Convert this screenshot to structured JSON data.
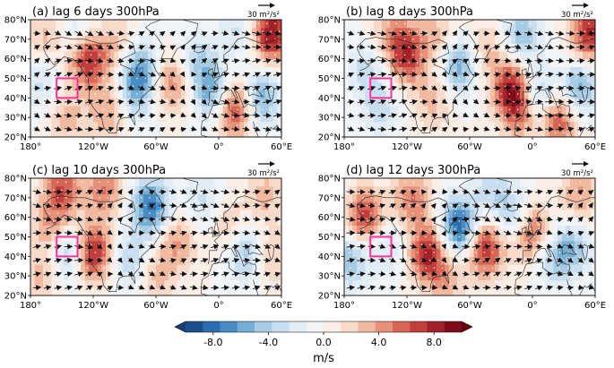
{
  "chart_data": [
    {
      "type": "heatmap",
      "title": "(a) lag 6 days  300hPa",
      "ref_arrow_label": "30 m²/s²",
      "xlabel": "",
      "ylabel": "",
      "xlim": [
        -180,
        60
      ],
      "ylim": [
        20,
        80
      ],
      "x_ticks": [
        -180,
        -120,
        -60,
        0,
        60
      ],
      "x_tick_labels": [
        "180°",
        "120°W",
        "60°W",
        "0°",
        "60°E"
      ],
      "y_ticks": [
        20,
        30,
        40,
        50,
        60,
        70,
        80
      ],
      "y_tick_labels": [
        "20°N",
        "30°N",
        "40°N",
        "50°N",
        "60°N",
        "70°N",
        "80°N"
      ],
      "box": {
        "lon": [
          -155,
          -135
        ],
        "lat": [
          40,
          50
        ]
      },
      "anomalies": [
        {
          "lon": -125,
          "lat": 60,
          "value": 8
        },
        {
          "lon": -135,
          "lat": 73,
          "value": -3
        },
        {
          "lon": -95,
          "lat": 67,
          "value": 3
        },
        {
          "lon": -75,
          "lat": 55,
          "value": -6
        },
        {
          "lon": -80,
          "lat": 42,
          "value": -4
        },
        {
          "lon": -105,
          "lat": 33,
          "value": 4
        },
        {
          "lon": -145,
          "lat": 30,
          "value": 3
        },
        {
          "lon": -45,
          "lat": 48,
          "value": 5
        },
        {
          "lon": -20,
          "lat": 58,
          "value": -4
        },
        {
          "lon": -5,
          "lat": 42,
          "value": -6
        },
        {
          "lon": 15,
          "lat": 35,
          "value": 8
        },
        {
          "lon": 40,
          "lat": 40,
          "value": -6
        },
        {
          "lon": 50,
          "lat": 73,
          "value": 9
        },
        {
          "lon": 20,
          "lat": 75,
          "value": -3
        },
        {
          "lon": -170,
          "lat": 48,
          "value": -3
        },
        {
          "lon": -165,
          "lat": 70,
          "value": 3
        }
      ]
    },
    {
      "type": "heatmap",
      "title": "(b) lag 8 days  300hPa",
      "ref_arrow_label": "30 m²/s²",
      "xlabel": "",
      "ylabel": "",
      "xlim": [
        -180,
        60
      ],
      "ylim": [
        20,
        80
      ],
      "x_ticks": [
        -180,
        -120,
        -60,
        0,
        60
      ],
      "x_tick_labels": [
        "180°",
        "120°W",
        "60°W",
        "0°",
        "60°E"
      ],
      "y_ticks": [
        20,
        30,
        40,
        50,
        60,
        70,
        80
      ],
      "y_tick_labels": [
        "20°N",
        "30°N",
        "40°N",
        "50°N",
        "60°N",
        "70°N",
        "80°N"
      ],
      "box": {
        "lon": [
          -155,
          -135
        ],
        "lat": [
          40,
          50
        ]
      },
      "anomalies": [
        {
          "lon": -120,
          "lat": 62,
          "value": 7
        },
        {
          "lon": -90,
          "lat": 72,
          "value": 3
        },
        {
          "lon": -70,
          "lat": 57,
          "value": -6
        },
        {
          "lon": -95,
          "lat": 38,
          "value": 3
        },
        {
          "lon": -145,
          "lat": 35,
          "value": -3
        },
        {
          "lon": -160,
          "lat": 55,
          "value": -3
        },
        {
          "lon": -20,
          "lat": 45,
          "value": 8
        },
        {
          "lon": -10,
          "lat": 33,
          "value": 5
        },
        {
          "lon": 5,
          "lat": 40,
          "value": -6
        },
        {
          "lon": 25,
          "lat": 30,
          "value": 7
        },
        {
          "lon": 45,
          "lat": 45,
          "value": -6
        },
        {
          "lon": 55,
          "lat": 73,
          "value": 8
        },
        {
          "lon": -10,
          "lat": 72,
          "value": -5
        },
        {
          "lon": -45,
          "lat": 65,
          "value": 3
        },
        {
          "lon": -135,
          "lat": 75,
          "value": 3
        }
      ]
    },
    {
      "type": "heatmap",
      "title": "(c) lag 10 days  300hPa",
      "ref_arrow_label": "30 m²/s²",
      "xlabel": "",
      "ylabel": "",
      "xlim": [
        -180,
        60
      ],
      "ylim": [
        20,
        80
      ],
      "x_ticks": [
        -180,
        -120,
        -60,
        0,
        60
      ],
      "x_tick_labels": [
        "180°",
        "120°W",
        "60°W",
        "0°",
        "60°E"
      ],
      "y_ticks": [
        20,
        30,
        40,
        50,
        60,
        70,
        80
      ],
      "y_tick_labels": [
        "20°N",
        "30°N",
        "40°N",
        "50°N",
        "60°N",
        "70°N",
        "80°N"
      ],
      "box": {
        "lon": [
          -155,
          -135
        ],
        "lat": [
          40,
          50
        ]
      },
      "anomalies": [
        {
          "lon": -150,
          "lat": 75,
          "value": 6
        },
        {
          "lon": -110,
          "lat": 75,
          "value": 5
        },
        {
          "lon": -120,
          "lat": 42,
          "value": 8
        },
        {
          "lon": -160,
          "lat": 55,
          "value": 4
        },
        {
          "lon": -145,
          "lat": 42,
          "value": -5
        },
        {
          "lon": -85,
          "lat": 38,
          "value": -4
        },
        {
          "lon": -65,
          "lat": 65,
          "value": -8
        },
        {
          "lon": -40,
          "lat": 48,
          "value": 4
        },
        {
          "lon": -15,
          "lat": 68,
          "value": -3
        },
        {
          "lon": 10,
          "lat": 55,
          "value": 3
        },
        {
          "lon": 25,
          "lat": 42,
          "value": -5
        },
        {
          "lon": 50,
          "lat": 40,
          "value": 3
        },
        {
          "lon": 45,
          "lat": 72,
          "value": 3
        },
        {
          "lon": -170,
          "lat": 30,
          "value": 3
        },
        {
          "lon": -60,
          "lat": 30,
          "value": 3
        }
      ]
    },
    {
      "type": "heatmap",
      "title": "(d) lag 12 days  300hPa",
      "ref_arrow_label": "30 m²/s²",
      "xlabel": "",
      "ylabel": "",
      "xlim": [
        -180,
        60
      ],
      "ylim": [
        20,
        80
      ],
      "x_ticks": [
        -180,
        -120,
        -60,
        0,
        60
      ],
      "x_tick_labels": [
        "180°",
        "120°W",
        "60°W",
        "0°",
        "60°E"
      ],
      "y_ticks": [
        20,
        30,
        40,
        50,
        60,
        70,
        80
      ],
      "y_tick_labels": [
        "20°N",
        "30°N",
        "40°N",
        "50°N",
        "60°N",
        "70°N",
        "80°N"
      ],
      "box": {
        "lon": [
          -155,
          -135
        ],
        "lat": [
          40,
          50
        ]
      },
      "anomalies": [
        {
          "lon": -160,
          "lat": 60,
          "value": 7
        },
        {
          "lon": -115,
          "lat": 70,
          "value": 5
        },
        {
          "lon": -175,
          "lat": 38,
          "value": -5
        },
        {
          "lon": -140,
          "lat": 45,
          "value": -3
        },
        {
          "lon": -100,
          "lat": 42,
          "value": 8
        },
        {
          "lon": -70,
          "lat": 55,
          "value": -9
        },
        {
          "lon": -45,
          "lat": 45,
          "value": 8
        },
        {
          "lon": -20,
          "lat": 62,
          "value": -4
        },
        {
          "lon": 0,
          "lat": 52,
          "value": 6
        },
        {
          "lon": 20,
          "lat": 40,
          "value": -4
        },
        {
          "lon": 40,
          "lat": 45,
          "value": -4
        },
        {
          "lon": 45,
          "lat": 72,
          "value": 4
        },
        {
          "lon": -40,
          "lat": 75,
          "value": -3
        },
        {
          "lon": -80,
          "lat": 28,
          "value": 3
        }
      ]
    }
  ],
  "colorbar": {
    "min": -10,
    "max": 10,
    "step": 1,
    "tick_values": [
      -8,
      -4,
      0,
      4,
      8
    ],
    "tick_labels": [
      "-8.0",
      "-4.0",
      "0.0",
      "4.0",
      "8.0"
    ],
    "unit_label": "m/s",
    "colors": [
      "#1c4e8c",
      "#2d6dae",
      "#4a8dc4",
      "#77aed4",
      "#a6cbe2",
      "#c9def0",
      "#e2edf6",
      "#f2f5f8",
      "#fbeee6",
      "#f7dac9",
      "#f1b9a0",
      "#e6917a",
      "#d76656",
      "#c03f3d",
      "#a12128",
      "#7d0d1c"
    ],
    "neg_color": "#183e73",
    "pos_color": "#67000d"
  },
  "colors": {
    "box": "#ff3399",
    "vector": "#111111",
    "stipple": "#ffffff",
    "coast": "#222222"
  }
}
